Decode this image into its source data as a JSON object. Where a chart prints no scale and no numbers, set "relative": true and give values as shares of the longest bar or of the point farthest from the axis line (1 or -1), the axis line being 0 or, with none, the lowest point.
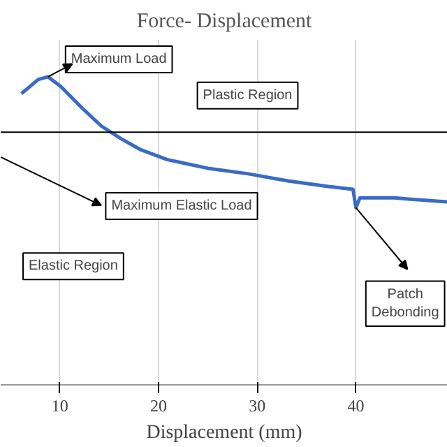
{
  "chart_data": {
    "type": "line",
    "title": "Force- Displacement",
    "xlabel": "Displacement (mm)",
    "relative": true,
    "x": [
      6.1,
      7.8,
      8.8,
      10.1,
      12.2,
      14.2,
      16.2,
      18.2,
      20.9,
      25.0,
      29.1,
      33.1,
      37.2,
      39.7,
      40.0,
      40.4,
      43.9,
      45.3,
      49.3
    ],
    "series": [
      {
        "color": "#3a6bc4",
        "values": [
          0.945,
          0.991,
          1.0,
          0.968,
          0.9,
          0.84,
          0.799,
          0.763,
          0.731,
          0.703,
          0.685,
          0.662,
          0.644,
          0.635,
          0.575,
          0.607,
          0.607,
          0.603,
          0.594
        ]
      }
    ],
    "xlim": [
      4,
      49.3
    ],
    "xticks": [
      10,
      20,
      30,
      40
    ],
    "grid": "x",
    "ref_lines": [
      {
        "axis": "y",
        "value": 0.82,
        "color": "#000000"
      }
    ],
    "annotations": [
      {
        "text": "Maximum Load",
        "x": 8.8,
        "y": 1.0
      },
      "Plastic Region",
      "Maximum Elastic Load",
      "Elastic Region",
      {
        "text": "Patch Debonding",
        "x": 40,
        "y": 0.575
      }
    ]
  }
}
